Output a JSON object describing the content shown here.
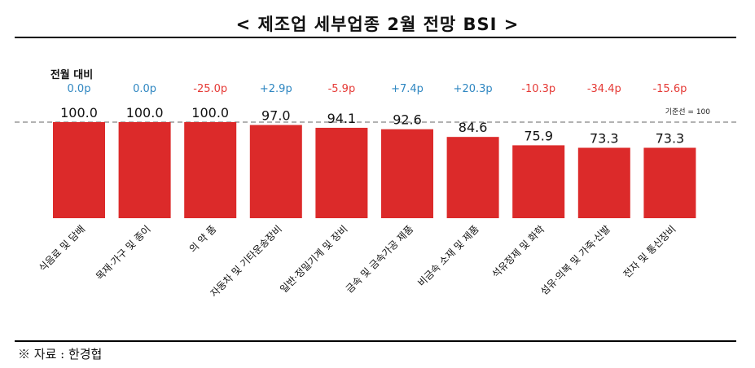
{
  "title": "< 제조업 세부업종 2월 전망 BSI >",
  "source": "※ 자료 : 한경협",
  "chart_data": {
    "type": "bar",
    "title": "< 제조업 세부업종 2월 전망 BSI >",
    "categories": [
      "식음료 및 담배",
      "목재·가구 및 종이",
      "의 약 품",
      "자동차 및 기타운송장비",
      "일반·정밀기계 및 장비",
      "금속 및 금속가공 제품",
      "비금속 소재 및 제품",
      "석유정제 및 화학",
      "섬유·의복 및 가죽·신발",
      "전자 및 통신장비"
    ],
    "values": [
      100.0,
      100.0,
      100.0,
      97.0,
      94.1,
      92.6,
      84.6,
      75.9,
      73.3,
      73.3
    ],
    "value_labels": [
      "100.0",
      "100.0",
      "100.0",
      "97.0",
      "94.1",
      "92.6",
      "84.6",
      "75.9",
      "73.3",
      "73.3"
    ],
    "change_header": "전월 대비",
    "changes": [
      "0.0p",
      "0.0p",
      "-25.0p",
      "+2.9p",
      "-5.9p",
      "+7.4p",
      "+20.3p",
      "-10.3p",
      "-34.4p",
      "-15.6p"
    ],
    "reference_label": "기준선 = 100",
    "reference_value": 100,
    "ylim": [
      0,
      100
    ],
    "bar_color": "#dc2a2a",
    "positive_color": "#2e86c1",
    "negative_color": "#e53935"
  }
}
